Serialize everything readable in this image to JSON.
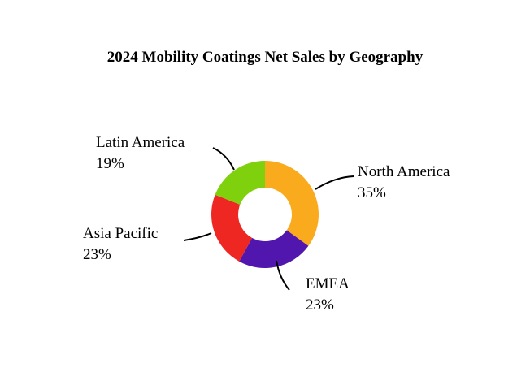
{
  "chart_data": {
    "type": "pie",
    "title": "2024 Mobility Coatings Net Sales by Geography",
    "donut": true,
    "start_angle_deg": 0,
    "direction": "clockwise",
    "slices": [
      {
        "label": "North America",
        "value": 35,
        "value_label": "35%",
        "color": "#f9ab1d"
      },
      {
        "label": "EMEA",
        "value": 23,
        "value_label": "23%",
        "color": "#5116ad"
      },
      {
        "label": "Asia Pacific",
        "value": 23,
        "value_label": "23%",
        "color": "#ee2722"
      },
      {
        "label": "Latin America",
        "value": 19,
        "value_label": "19%",
        "color": "#7fd10d"
      }
    ],
    "legend": "none"
  }
}
